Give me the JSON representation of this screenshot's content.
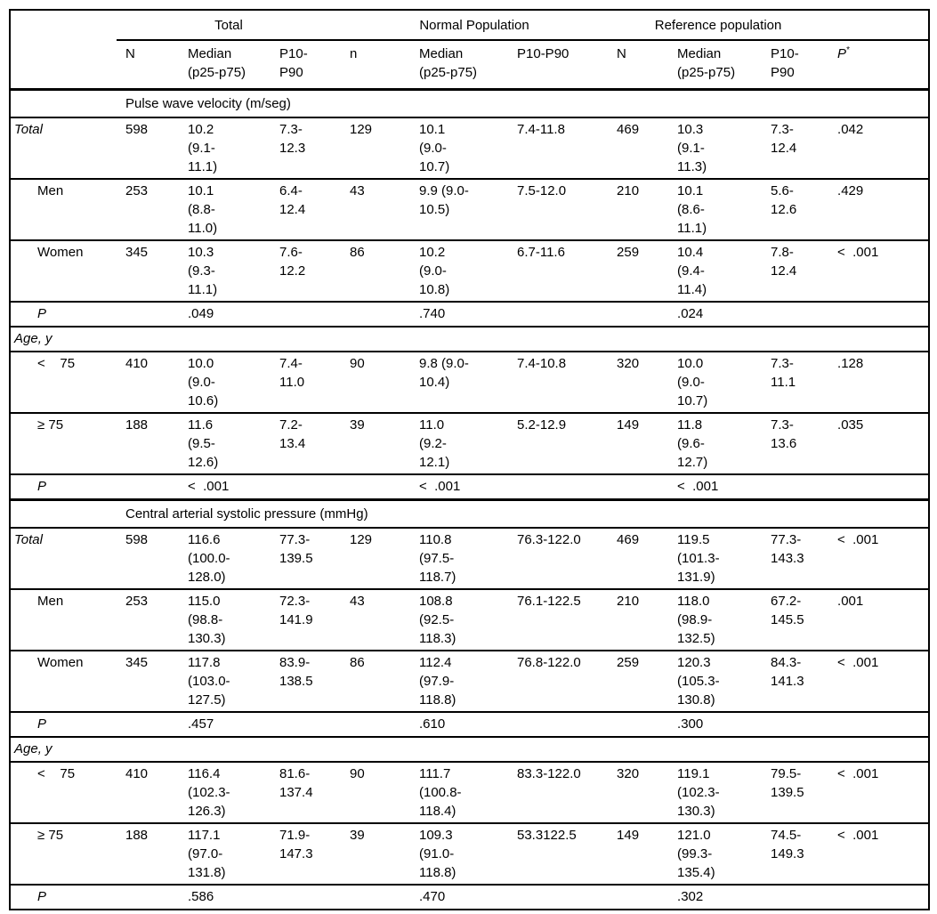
{
  "table": {
    "group_headers": [
      {
        "label": "Total"
      },
      {
        "label": "Normal Population"
      },
      {
        "label": "Reference population"
      }
    ],
    "column_headers": [
      "N",
      "Median (p25-p75)",
      "P10-P90",
      "n",
      "Median (p25-p75)",
      "P10-P90",
      "N",
      "Median (p25-p75)",
      "P10-P90"
    ],
    "p_column": {
      "label": "P",
      "superscript": "*"
    },
    "sections": [
      {
        "title": "Pulse wave velocity (m/seg)",
        "rows": [
          {
            "label": "Total",
            "italic": true,
            "indent": false,
            "type": "data",
            "cells": [
              "598",
              "10.2 (9.1-11.1)",
              "7.3-12.3",
              "129",
              "10.1 (9.0-10.7)",
              "7.4-11.8",
              "469",
              "10.3 (9.1-11.3)",
              "7.3-12.4",
              ".042"
            ]
          },
          {
            "label": "Men",
            "italic": false,
            "indent": true,
            "type": "data",
            "cells": [
              "253",
              "10.1 (8.8-11.0)",
              "6.4-12.4",
              "43",
              "9.9 (9.0-10.5)",
              "7.5-12.0",
              "210",
              "10.1 (8.6-11.1)",
              "5.6-12.6",
              ".429"
            ]
          },
          {
            "label": "Women",
            "italic": false,
            "indent": true,
            "type": "data",
            "cells": [
              "345",
              "10.3 (9.3-11.1)",
              "7.6-12.2",
              "86",
              "10.2 (9.0-10.8)",
              "6.7-11.6",
              "259",
              "10.4 (9.4-11.4)",
              "7.8-12.4",
              "<  .001"
            ]
          },
          {
            "label": "P",
            "italic": true,
            "indent": true,
            "type": "p",
            "cells": [
              "",
              ".049",
              "",
              "",
              ".740",
              "",
              "",
              ".024",
              "",
              ""
            ]
          },
          {
            "label": "Age, y",
            "italic": true,
            "indent": false,
            "type": "subheading",
            "cells": [
              "",
              "",
              "",
              "",
              "",
              "",
              "",
              "",
              "",
              ""
            ]
          },
          {
            "label": "<    75",
            "italic": false,
            "indent": true,
            "type": "data",
            "cells": [
              "410",
              "10.0 (9.0-10.6)",
              "7.4-11.0",
              "90",
              "9.8 (9.0-10.4)",
              "7.4-10.8",
              "320",
              "10.0 (9.0-10.7)",
              "7.3-11.1",
              ".128"
            ]
          },
          {
            "label": "≥ 75",
            "italic": false,
            "indent": true,
            "type": "data",
            "cells": [
              "188",
              "11.6 (9.5-12.6)",
              "7.2-13.4",
              "39",
              "11.0 (9.2-12.1)",
              "5.2-12.9",
              "149",
              "11.8 (9.6-12.7)",
              "7.3-13.6",
              ".035"
            ]
          },
          {
            "label": "P",
            "italic": true,
            "indent": true,
            "type": "p",
            "cells": [
              "",
              "<  .001",
              "",
              "",
              "<  .001",
              "",
              "",
              "<  .001",
              "",
              ""
            ]
          }
        ]
      },
      {
        "title": "Central arterial systolic pressure (mmHg)",
        "rows": [
          {
            "label": "Total",
            "italic": true,
            "indent": false,
            "type": "data",
            "cells": [
              "598",
              "116.6 (100.0-128.0)",
              "77.3-139.5",
              "129",
              "110.8 (97.5-118.7)",
              "76.3-122.0",
              "469",
              "119.5 (101.3-131.9)",
              "77.3-143.3",
              "<  .001"
            ]
          },
          {
            "label": "Men",
            "italic": false,
            "indent": true,
            "type": "data",
            "cells": [
              "253",
              "115.0 (98.8-130.3)",
              "72.3-141.9",
              "43",
              "108.8 (92.5-118.3)",
              "76.1-122.5",
              "210",
              "118.0 (98.9-132.5)",
              "67.2-145.5",
              ".001"
            ]
          },
          {
            "label": "Women",
            "italic": false,
            "indent": true,
            "type": "data",
            "cells": [
              "345",
              "117.8 (103.0-127.5)",
              "83.9-138.5",
              "86",
              "112.4 (97.9-118.8)",
              "76.8-122.0",
              "259",
              "120.3 (105.3-130.8)",
              "84.3-141.3",
              "<  .001"
            ]
          },
          {
            "label": "P",
            "italic": true,
            "indent": true,
            "type": "p",
            "cells": [
              "",
              ".457",
              "",
              "",
              ".610",
              "",
              "",
              ".300",
              "",
              ""
            ]
          },
          {
            "label": "Age, y",
            "italic": true,
            "indent": false,
            "type": "subheading",
            "cells": [
              "",
              "",
              "",
              "",
              "",
              "",
              "",
              "",
              "",
              ""
            ]
          },
          {
            "label": "<    75",
            "italic": false,
            "indent": true,
            "type": "data",
            "cells": [
              "410",
              "116.4 (102.3-126.3)",
              "81.6-137.4",
              "90",
              "111.7 (100.8-118.4)",
              "83.3-122.0",
              "320",
              "119.1 (102.3-130.3)",
              "79.5-139.5",
              "<  .001"
            ]
          },
          {
            "label": "≥ 75",
            "italic": false,
            "indent": true,
            "type": "data",
            "cells": [
              "188",
              "117.1 (97.0-131.8)",
              "71.9-147.3",
              "39",
              "109.3 (91.0-118.8)",
              "53.3122.5",
              "149",
              "121.0 (99.3-135.4)",
              "74.5-149.3",
              "<  .001"
            ]
          },
          {
            "label": "P",
            "italic": true,
            "indent": true,
            "type": "p",
            "cells": [
              "",
              ".586",
              "",
              "",
              ".470",
              "",
              "",
              ".302",
              "",
              ""
            ]
          }
        ]
      }
    ]
  }
}
